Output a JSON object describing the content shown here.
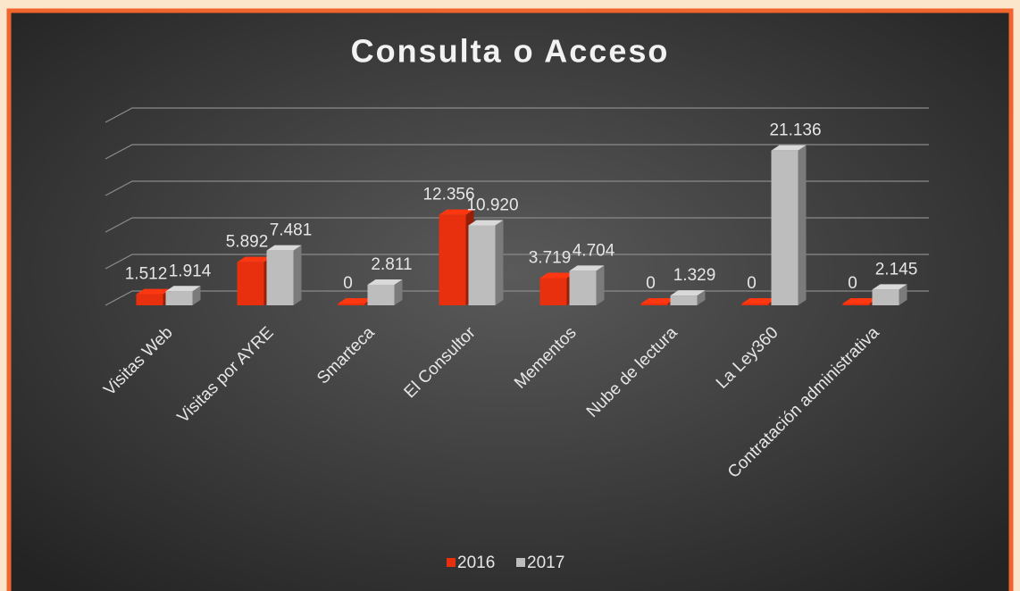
{
  "chart_data": {
    "type": "bar3d",
    "title": "Consulta o Acceso",
    "categories": [
      "Visitas Web",
      "Visitas por AYRE",
      "Smarteca",
      "El Consultor",
      "Mementos",
      "Nube de lectura",
      "La Ley360",
      "Contratación administrativa"
    ],
    "series": [
      {
        "name": "2016",
        "color": "#e8300e",
        "values": [
          1512,
          5892,
          0,
          12356,
          3719,
          0,
          0,
          0
        ],
        "value_labels": [
          "1.512",
          "5.892",
          "0",
          "12.356",
          "3.719",
          "0",
          "0",
          "0"
        ]
      },
      {
        "name": "2017",
        "color": "#bdbdbd",
        "values": [
          1914,
          7481,
          2811,
          10920,
          4704,
          1329,
          21136,
          2145
        ],
        "value_labels": [
          "1.914",
          "7.481",
          "2.811",
          "10.920",
          "4.704",
          "1.329",
          "21.136",
          "2.145"
        ]
      }
    ],
    "ylim": [
      0,
      25000
    ],
    "yticks": [
      0,
      5000,
      10000,
      15000,
      20000,
      25000
    ],
    "grid": true,
    "legend": "bottom"
  }
}
